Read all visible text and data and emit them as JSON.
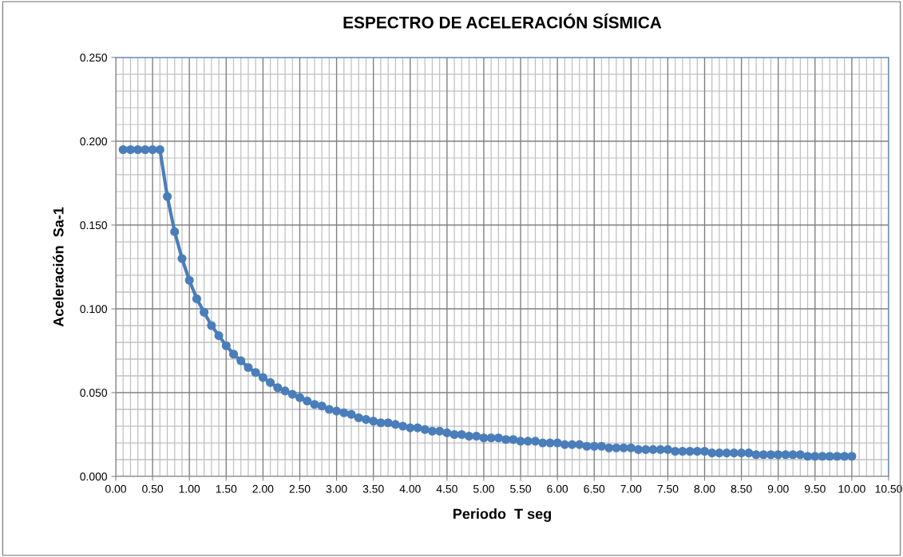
{
  "chart_data": {
    "type": "line",
    "title": "ESPECTRO DE ACELERACIÓN SÍSMICA",
    "xlabel": "Periodo  T seg",
    "ylabel": "Aceleración  Sa-1",
    "x": [
      0.1,
      0.2,
      0.3,
      0.4,
      0.5,
      0.6,
      0.7,
      0.8,
      0.9,
      1.0,
      1.1,
      1.2,
      1.3,
      1.4,
      1.5,
      1.6,
      1.7,
      1.8,
      1.9,
      2.0,
      2.1,
      2.2,
      2.3,
      2.4,
      2.5,
      2.6,
      2.7,
      2.8,
      2.9,
      3.0,
      3.1,
      3.2,
      3.3,
      3.4,
      3.5,
      3.6,
      3.7,
      3.8,
      3.9,
      4.0,
      4.1,
      4.2,
      4.3,
      4.4,
      4.5,
      4.6,
      4.7,
      4.8,
      4.9,
      5.0,
      5.1,
      5.2,
      5.3,
      5.4,
      5.5,
      5.6,
      5.7,
      5.8,
      5.9,
      6.0,
      6.1,
      6.2,
      6.3,
      6.4,
      6.5,
      6.6,
      6.7,
      6.8,
      6.9,
      7.0,
      7.1,
      7.2,
      7.3,
      7.4,
      7.5,
      7.6,
      7.7,
      7.8,
      7.9,
      8.0,
      8.1,
      8.2,
      8.3,
      8.4,
      8.5,
      8.6,
      8.7,
      8.8,
      8.9,
      9.0,
      9.1,
      9.2,
      9.3,
      9.4,
      9.5,
      9.6,
      9.7,
      9.8,
      9.9,
      10.0
    ],
    "series": [
      {
        "color": "#4a7ebb",
        "values": [
          0.195,
          0.195,
          0.195,
          0.195,
          0.195,
          0.195,
          0.167,
          0.146,
          0.13,
          0.117,
          0.106,
          0.098,
          0.09,
          0.084,
          0.078,
          0.073,
          0.069,
          0.065,
          0.062,
          0.059,
          0.056,
          0.053,
          0.051,
          0.049,
          0.047,
          0.045,
          0.043,
          0.042,
          0.04,
          0.039,
          0.038,
          0.037,
          0.035,
          0.034,
          0.033,
          0.032,
          0.032,
          0.031,
          0.03,
          0.029,
          0.029,
          0.028,
          0.027,
          0.027,
          0.026,
          0.025,
          0.025,
          0.024,
          0.024,
          0.023,
          0.023,
          0.023,
          0.022,
          0.022,
          0.021,
          0.021,
          0.021,
          0.02,
          0.02,
          0.02,
          0.019,
          0.019,
          0.019,
          0.018,
          0.018,
          0.018,
          0.017,
          0.017,
          0.017,
          0.017,
          0.016,
          0.016,
          0.016,
          0.016,
          0.016,
          0.015,
          0.015,
          0.015,
          0.015,
          0.015,
          0.014,
          0.014,
          0.014,
          0.014,
          0.014,
          0.014,
          0.013,
          0.013,
          0.013,
          0.013,
          0.013,
          0.013,
          0.013,
          0.012,
          0.012,
          0.012,
          0.012,
          0.012,
          0.012,
          0.012
        ]
      }
    ],
    "xlim": [
      0,
      10.5
    ],
    "ylim": [
      0,
      0.25
    ],
    "xticks": [
      {
        "value": 0,
        "label": "0.00"
      },
      {
        "value": 0.5,
        "label": "0.50"
      },
      {
        "value": 1,
        "label": "1.00"
      },
      {
        "value": 1.5,
        "label": "1.50"
      },
      {
        "value": 2,
        "label": "2.00"
      },
      {
        "value": 2.5,
        "label": "2.50"
      },
      {
        "value": 3,
        "label": "3.00"
      },
      {
        "value": 3.5,
        "label": "3.50"
      },
      {
        "value": 4,
        "label": "4.00"
      },
      {
        "value": 4.5,
        "label": "4.50"
      },
      {
        "value": 5,
        "label": "5.00"
      },
      {
        "value": 5.5,
        "label": "5.50"
      },
      {
        "value": 6,
        "label": "6.00"
      },
      {
        "value": 6.5,
        "label": "6.50"
      },
      {
        "value": 7,
        "label": "7.00"
      },
      {
        "value": 7.5,
        "label": "7.50"
      },
      {
        "value": 8,
        "label": "8.00"
      },
      {
        "value": 8.5,
        "label": "8.50"
      },
      {
        "value": 9,
        "label": "9.00"
      },
      {
        "value": 9.5,
        "label": "9.50"
      },
      {
        "value": 10,
        "label": "10.00"
      },
      {
        "value": 10.5,
        "label": "10.50"
      }
    ],
    "yticks": [
      {
        "value": 0,
        "label": "0.000"
      },
      {
        "value": 0.05,
        "label": "0.050"
      },
      {
        "value": 0.1,
        "label": "0.100"
      },
      {
        "value": 0.15,
        "label": "0.150"
      },
      {
        "value": 0.2,
        "label": "0.200"
      },
      {
        "value": 0.25,
        "label": "0.250"
      }
    ],
    "grid": true,
    "legend": false,
    "marker": "circle",
    "line_style": "solid"
  }
}
